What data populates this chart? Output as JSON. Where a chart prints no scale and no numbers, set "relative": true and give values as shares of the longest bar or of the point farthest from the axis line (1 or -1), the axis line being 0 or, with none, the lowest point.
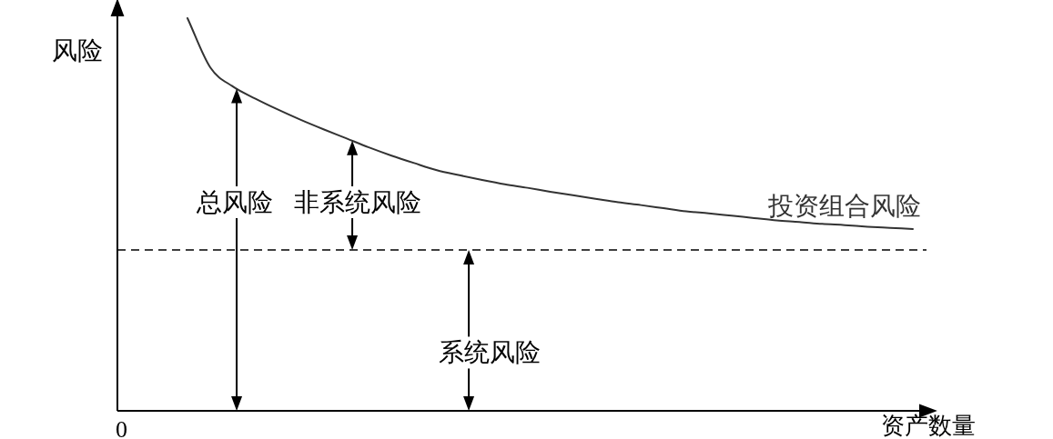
{
  "chart_data": {
    "type": "line",
    "relative": true,
    "xlabel": "资产数量",
    "ylabel": "风险",
    "categories": [
      null,
      null,
      null,
      null,
      null,
      null,
      null,
      null,
      null,
      null,
      null,
      null,
      null,
      null,
      null,
      null,
      null,
      null,
      null,
      null,
      null,
      null,
      null,
      null,
      null,
      null,
      null,
      null,
      null,
      null,
      null,
      null,
      null
    ],
    "series": [
      {
        "name": "投资组合风险",
        "color": "#333333",
        "values": [
          1,
          0.875,
          0.826,
          0.795,
          0.767,
          0.741,
          0.717,
          0.694,
          0.671,
          0.65,
          0.631,
          0.613,
          0.6,
          0.588,
          0.577,
          0.568,
          0.558,
          0.549,
          0.54,
          0.531,
          0.524,
          0.516,
          0.508,
          0.503,
          0.497,
          0.491,
          0.485,
          0.481,
          0.476,
          0.473,
          0.469,
          0.466,
          0.463
        ]
      }
    ],
    "ref_lines": [
      {
        "axis": "y",
        "value": 0.41,
        "label": "系统风险",
        "line_style": "dashed",
        "color": "#000000"
      }
    ],
    "annotations": [
      "总风险",
      "非系统风险",
      "0"
    ],
    "legend": false,
    "marker": "none",
    "line_style": "solid",
    "grid": false
  }
}
